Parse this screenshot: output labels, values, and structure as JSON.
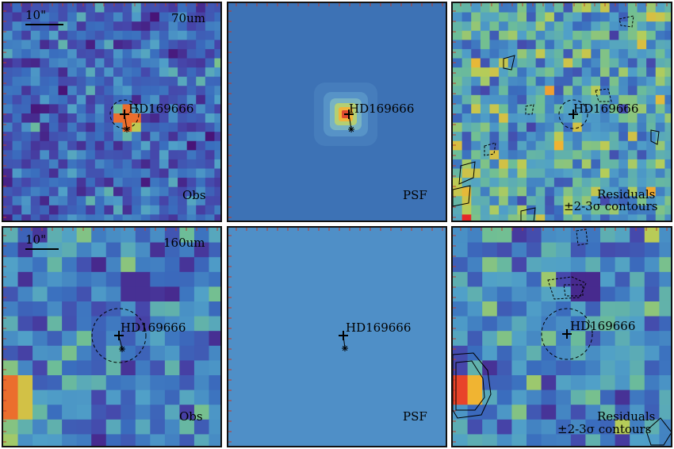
{
  "panels": [
    {
      "id": "obs70",
      "scale": "10\"",
      "band": "70um",
      "corner": "Obs",
      "target": "HD169666",
      "kind": "obs",
      "res": 24,
      "seed": 11
    },
    {
      "id": "psf70",
      "corner": "PSF",
      "target": "HD169666",
      "kind": "psf70"
    },
    {
      "id": "res70",
      "corner1": "Residuals",
      "corner2": "±2-3σ contours",
      "target": "HD169666",
      "kind": "res",
      "res": 24,
      "seed": 29
    },
    {
      "id": "obs160",
      "scale": "10\"",
      "band": "160um",
      "corner": "Obs",
      "target": "HD169666",
      "kind": "obs160",
      "res": 15,
      "seed": 41
    },
    {
      "id": "psf160",
      "corner": "PSF",
      "target": "HD169666",
      "kind": "psf160"
    },
    {
      "id": "res160",
      "corner1": "Residuals",
      "corner2": "±2-3σ contours",
      "target": "HD169666",
      "kind": "res160",
      "res": 15,
      "seed": 57
    }
  ],
  "colors": {
    "psf70_bg": "#3d72b5",
    "psf160_bg": "#4f8fc7",
    "accent": "#000000"
  }
}
